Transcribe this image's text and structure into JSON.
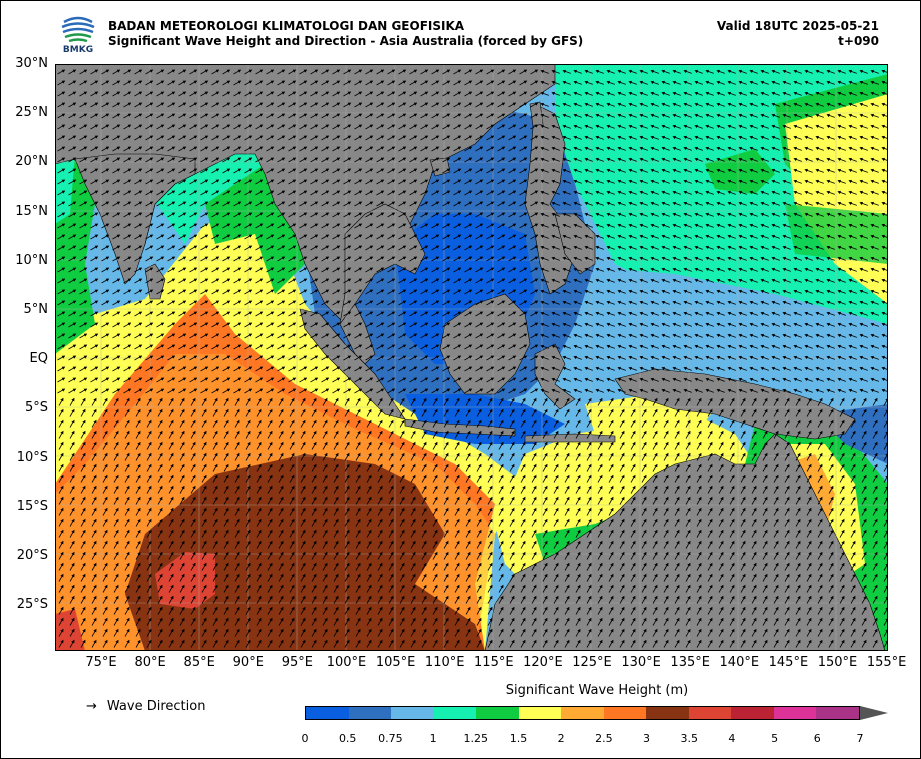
{
  "header": {
    "agency": "BADAN METEOROLOGI KLIMATOLOGI DAN GEOFISIKA",
    "product": "Significant Wave Height and Direction - Asia Australia (forced by GFS)",
    "valid": "Valid 18UTC 2025-05-21",
    "lead": "t+090",
    "logo_text": "BMKG"
  },
  "map": {
    "lat_labels": [
      "30°N",
      "25°N",
      "20°N",
      "15°N",
      "10°N",
      "5°N",
      "EQ",
      "5°S",
      "10°S",
      "15°S",
      "20°S",
      "25°S"
    ],
    "lon_labels": [
      "75°E",
      "80°E",
      "85°E",
      "90°E",
      "95°E",
      "100°E",
      "105°E",
      "110°E",
      "115°E",
      "120°E",
      "125°E",
      "130°E",
      "135°E",
      "140°E",
      "145°E",
      "150°E",
      "155°E"
    ],
    "land_color": "#888888",
    "grid": true
  },
  "legend": {
    "wave_direction_symbol": "→",
    "wave_direction_label": "Wave Direction",
    "colorbar_title": "Significant Wave Height (m)",
    "colorbar_ticks": [
      "0",
      "0.5",
      "0.75",
      "1",
      "1.25",
      "1.5",
      "2",
      "2.5",
      "3",
      "3.5",
      "4",
      "5",
      "6",
      "7"
    ],
    "colorbar_colors": [
      "#0a5fe0",
      "#2f6fc0",
      "#66b8e8",
      "#16f0b0",
      "#10cc40",
      "#ffff55",
      "#ffaa33",
      "#ff7722",
      "#883311",
      "#dd4433",
      "#bb2233",
      "#dd3399",
      "#aa3388"
    ]
  }
}
